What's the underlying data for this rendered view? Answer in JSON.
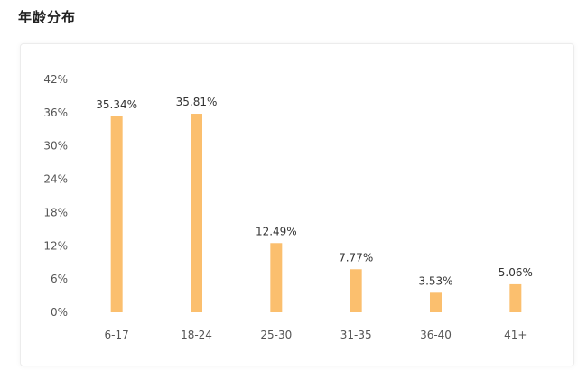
{
  "page_title": "年龄分布",
  "chart_data": {
    "type": "bar",
    "title": "年龄分布",
    "categories": [
      "6-17",
      "18-24",
      "25-30",
      "31-35",
      "36-40",
      "41+"
    ],
    "values": [
      35.34,
      35.81,
      12.49,
      7.77,
      3.53,
      5.06
    ],
    "data_labels": [
      "35.34%",
      "35.81%",
      "12.49%",
      "7.77%",
      "3.53%",
      "5.06%"
    ],
    "yticks": [
      "0%",
      "6%",
      "12%",
      "18%",
      "24%",
      "30%",
      "36%",
      "42%"
    ],
    "ylim": [
      0,
      42
    ],
    "grid": false,
    "bar_color": "#fbbf6e",
    "xlabel": "",
    "ylabel": ""
  }
}
